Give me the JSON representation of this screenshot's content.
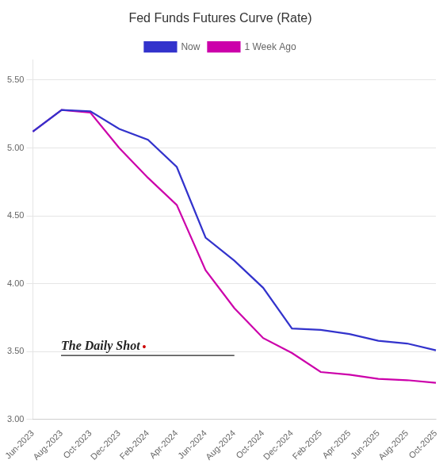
{
  "chart_data": {
    "type": "line",
    "title": "Fed Funds Futures Curve (Rate)",
    "categories": [
      "Jun-2023",
      "Aug-2023",
      "Oct-2023",
      "Dec-2023",
      "Feb-2024",
      "Apr-2024",
      "Jun-2024",
      "Aug-2024",
      "Oct-2024",
      "Dec-2024",
      "Feb-2025",
      "Apr-2025",
      "Jun-2025",
      "Aug-2025",
      "Oct-2025"
    ],
    "series": [
      {
        "name": "Now",
        "color": "#3333cc",
        "values": [
          5.12,
          5.28,
          5.27,
          5.14,
          5.06,
          4.86,
          4.34,
          4.17,
          3.97,
          3.67,
          3.66,
          3.63,
          3.58,
          3.56,
          3.51
        ]
      },
      {
        "name": "1 Week Ago",
        "color": "#cc00aa",
        "values": [
          5.12,
          5.28,
          5.26,
          5.0,
          4.78,
          4.58,
          4.1,
          3.82,
          3.6,
          3.49,
          3.35,
          3.33,
          3.3,
          3.29,
          3.27
        ]
      }
    ],
    "ylim": [
      3.0,
      5.65
    ],
    "yticks": [
      {
        "value": 3.0,
        "label": "3.00"
      },
      {
        "value": 3.5,
        "label": "3.50"
      },
      {
        "value": 4.0,
        "label": "4.00"
      },
      {
        "value": 4.5,
        "label": "4.50"
      },
      {
        "value": 5.0,
        "label": "5.00"
      },
      {
        "value": 5.5,
        "label": "5.50"
      }
    ],
    "grid": true,
    "legend": "top",
    "annotations": [
      {
        "text": "The Daily Shot"
      },
      {
        "text": "•",
        "color": "#cc0000"
      }
    ]
  }
}
